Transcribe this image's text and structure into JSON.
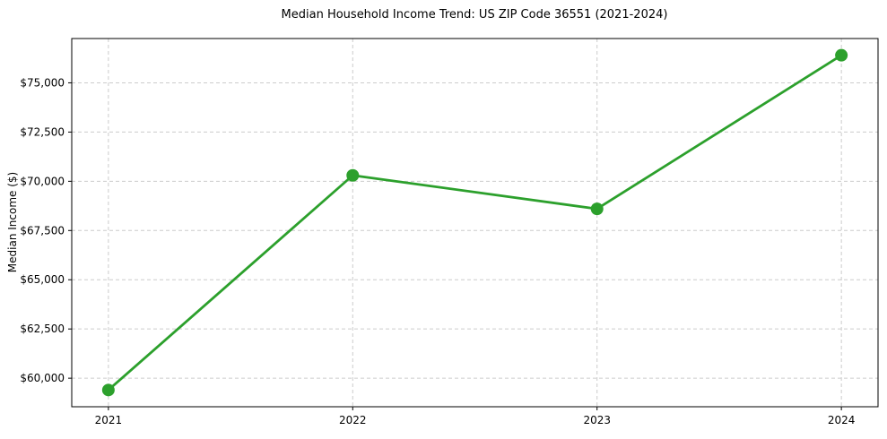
{
  "chart_data": {
    "type": "line",
    "title": "Median Household Income Trend: US ZIP Code 36551 (2021-2024)",
    "xlabel": "",
    "ylabel": "Median Income ($)",
    "x": [
      2021,
      2022,
      2023,
      2024
    ],
    "x_tick_labels": [
      "2021",
      "2022",
      "2023",
      "2024"
    ],
    "series": [
      {
        "name": "Median Household Income",
        "values": [
          59400,
          70300,
          68600,
          76400
        ]
      }
    ],
    "y_ticks": [
      60000,
      62500,
      65000,
      67500,
      70000,
      72500,
      75000
    ],
    "y_tick_labels": [
      "$60,000",
      "$62,500",
      "$65,000",
      "$67,500",
      "$70,000",
      "$72,500",
      "$75,000"
    ],
    "xlim": [
      2020.85,
      2024.15
    ],
    "ylim": [
      58550,
      77250
    ],
    "grid": true,
    "grid_style": "dashed",
    "legend_position": "none",
    "line_color": "#2ca02c",
    "marker_color": "#2ca02c",
    "grid_color": "#cccccc",
    "axis_color": "#000000",
    "background_color": "#ffffff"
  }
}
